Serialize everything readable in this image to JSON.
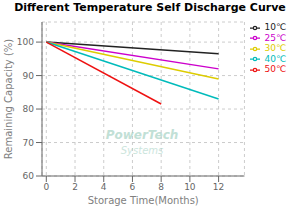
{
  "chart_data": {
    "type": "line",
    "title": "Different Temperature Self Discharge Curve",
    "x_label": "Storage Time(Months)",
    "y_label": "Remaining Capacity (%)",
    "xlim": [
      -0.3,
      13.8
    ],
    "ylim": [
      60,
      106
    ],
    "xticks": [
      0,
      2,
      4,
      6,
      8,
      10,
      12
    ],
    "yticks": [
      60,
      70,
      80,
      90,
      100
    ],
    "grid": true,
    "legend": "upper right",
    "series": [
      {
        "name": "10℃",
        "color": "#222222",
        "x": [
          0,
          12
        ],
        "values": [
          100,
          96.5
        ]
      },
      {
        "name": "25℃",
        "color": "#cc00cc",
        "x": [
          0,
          12
        ],
        "values": [
          100,
          92.0
        ]
      },
      {
        "name": "30℃",
        "color": "#ddcc00",
        "x": [
          0,
          12
        ],
        "values": [
          100,
          89.0
        ]
      },
      {
        "name": "40℃",
        "color": "#00bbbb",
        "x": [
          0,
          12
        ],
        "values": [
          100,
          83.0
        ]
      },
      {
        "name": "50℃",
        "color": "#ee1111",
        "x": [
          0,
          8
        ],
        "values": [
          100,
          81.5
        ]
      }
    ],
    "annotations": [
      "PowerTech",
      "Systems"
    ]
  }
}
